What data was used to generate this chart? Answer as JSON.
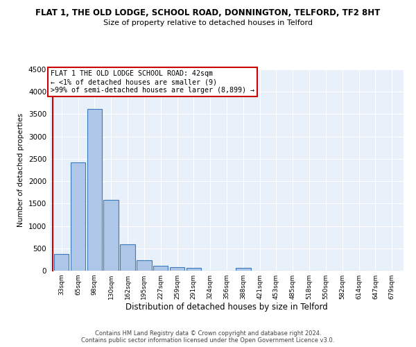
{
  "title": "FLAT 1, THE OLD LODGE, SCHOOL ROAD, DONNINGTON, TELFORD, TF2 8HT",
  "subtitle": "Size of property relative to detached houses in Telford",
  "xlabel": "Distribution of detached houses by size in Telford",
  "ylabel": "Number of detached properties",
  "bar_color": "#aec6e8",
  "bar_edge_color": "#3a7abf",
  "background_color": "#e8f0fa",
  "grid_color": "#ffffff",
  "categories": [
    "33sqm",
    "65sqm",
    "98sqm",
    "130sqm",
    "162sqm",
    "195sqm",
    "227sqm",
    "259sqm",
    "291sqm",
    "324sqm",
    "356sqm",
    "388sqm",
    "421sqm",
    "453sqm",
    "485sqm",
    "518sqm",
    "550sqm",
    "582sqm",
    "614sqm",
    "647sqm",
    "679sqm"
  ],
  "values": [
    370,
    2420,
    3620,
    1580,
    590,
    230,
    110,
    70,
    55,
    0,
    0,
    60,
    0,
    0,
    0,
    0,
    0,
    0,
    0,
    0,
    0
  ],
  "annotation_text": "FLAT 1 THE OLD LODGE SCHOOL ROAD: 42sqm\n← <1% of detached houses are smaller (9)\n>99% of semi-detached houses are larger (8,899) →",
  "annotation_box_color": "#ffffff",
  "annotation_box_edge_color": "#cc0000",
  "property_line_color": "#cc0000",
  "footer": "Contains HM Land Registry data © Crown copyright and database right 2024.\nContains public sector information licensed under the Open Government Licence v3.0.",
  "ylim": [
    0,
    4500
  ],
  "yticks": [
    0,
    500,
    1000,
    1500,
    2000,
    2500,
    3000,
    3500,
    4000,
    4500
  ]
}
